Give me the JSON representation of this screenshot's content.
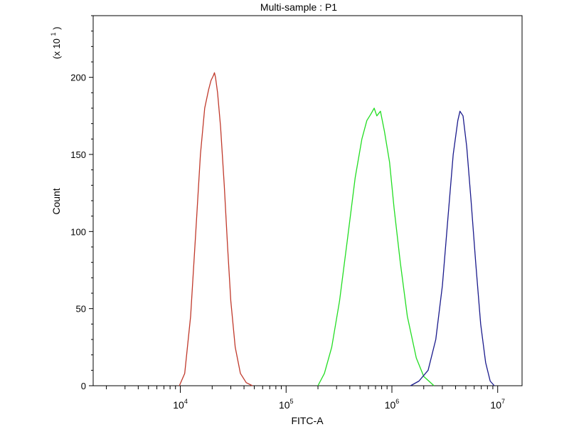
{
  "chart_data": {
    "type": "line",
    "title": "Multi-sample : P1",
    "xlabel": "FITC-A",
    "ylabel": "Count",
    "y_multiplier_label": {
      "prefix": "(x 10",
      "exp": "1",
      "suffix": ")"
    },
    "x_scale": "log",
    "xlim": [
      1500,
      17000000
    ],
    "ylim": [
      0,
      240
    ],
    "x_ticks": [
      {
        "value": 10000,
        "base": "10",
        "exp": "4"
      },
      {
        "value": 100000,
        "base": "10",
        "exp": "5"
      },
      {
        "value": 1000000,
        "base": "10",
        "exp": "6"
      },
      {
        "value": 10000000,
        "base": "10",
        "exp": "7"
      }
    ],
    "y_ticks": [
      0,
      50,
      100,
      150,
      200
    ],
    "grid": false,
    "legend": "none",
    "series": [
      {
        "color": "#c0392b",
        "x": [
          9800,
          11000,
          12500,
          14000,
          15500,
          17000,
          18500,
          19500,
          20500,
          21000,
          21500,
          22500,
          24000,
          26000,
          28000,
          30000,
          33000,
          37000,
          42000,
          48000
        ],
        "y": [
          0,
          8,
          45,
          100,
          150,
          180,
          192,
          198,
          201,
          203,
          200,
          190,
          168,
          130,
          90,
          55,
          25,
          8,
          2,
          0
        ]
      },
      {
        "color": "#22dd22",
        "x": [
          200000,
          230000,
          270000,
          320000,
          380000,
          450000,
          520000,
          580000,
          630000,
          680000,
          720000,
          780000,
          850000,
          950000,
          1050000,
          1200000,
          1400000,
          1700000,
          2000000,
          2500000
        ],
        "y": [
          0,
          8,
          25,
          55,
          95,
          135,
          160,
          172,
          176,
          180,
          175,
          178,
          165,
          145,
          115,
          80,
          45,
          18,
          6,
          0
        ]
      },
      {
        "color": "#1a1a8c",
        "x": [
          1500000,
          1800000,
          2200000,
          2600000,
          3000000,
          3400000,
          3800000,
          4200000,
          4400000,
          4700000,
          5100000,
          5600000,
          6200000,
          6900000,
          7700000,
          8500000,
          9300000
        ],
        "y": [
          0,
          3,
          10,
          30,
          65,
          110,
          150,
          172,
          178,
          175,
          155,
          120,
          80,
          40,
          15,
          3,
          0
        ]
      }
    ]
  }
}
